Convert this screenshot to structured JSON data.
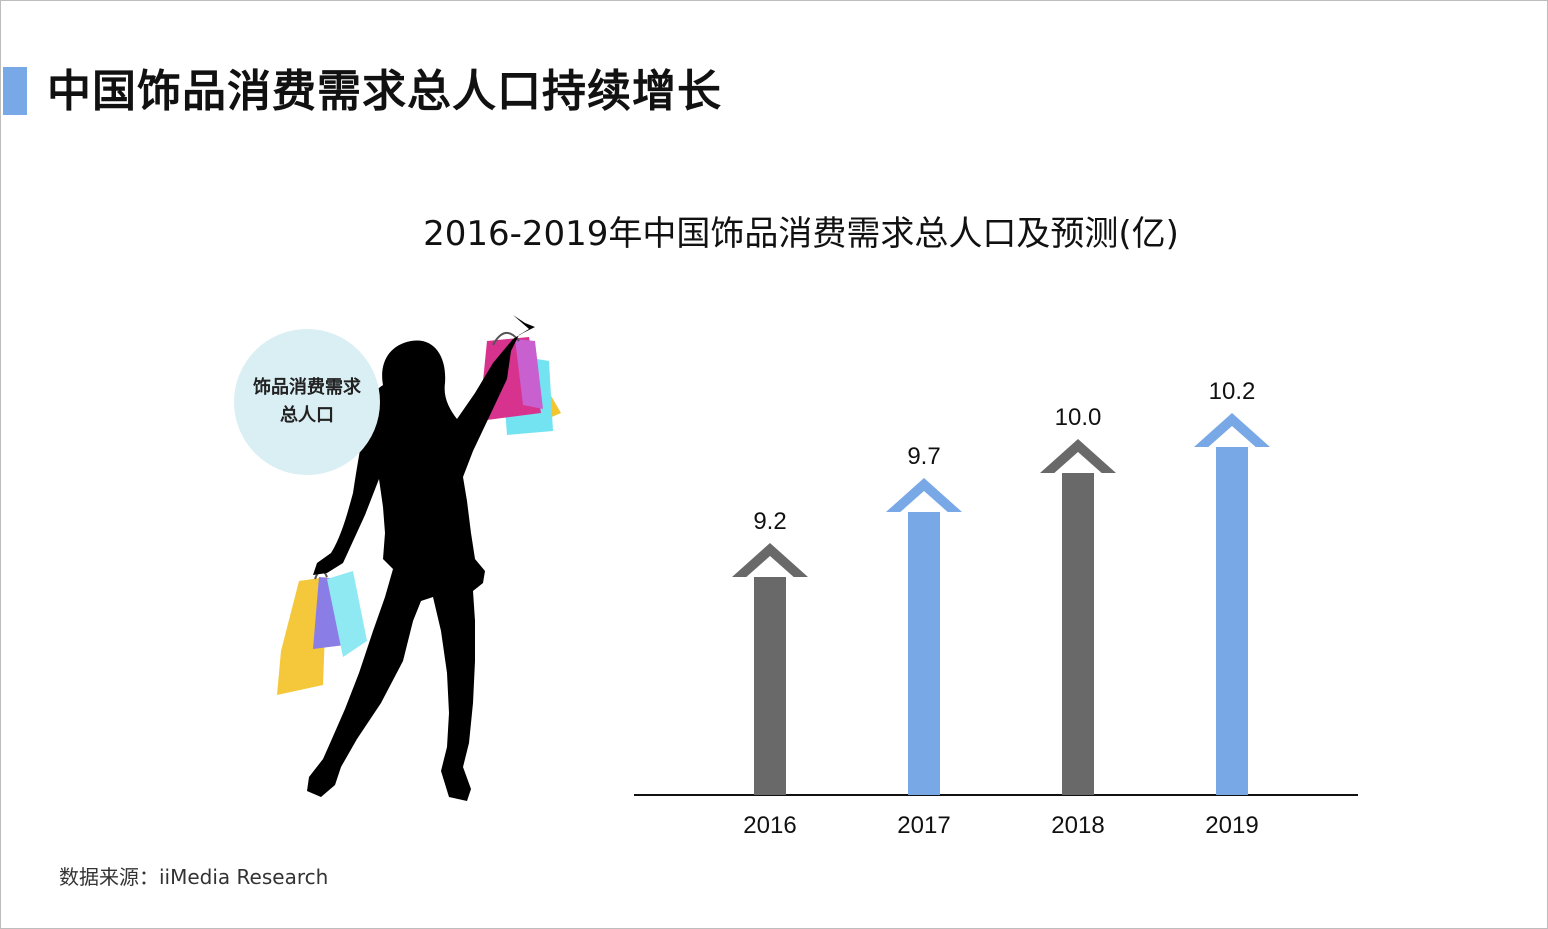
{
  "header": {
    "title": "中国饰品消费需求总人口持续增长"
  },
  "illustration": {
    "bubble_label": "饰品消费需求总人口"
  },
  "footer": {
    "source": "数据来源：iiMedia Research"
  },
  "colors": {
    "accent": "#78a8e6",
    "gray_bar": "#696969",
    "blue_bar": "#78a8e6",
    "bubble": "#d9eff4"
  },
  "chart_data": {
    "type": "bar",
    "title": "2016-2019年中国饰品消费需求总人口及预测(亿)",
    "categories": [
      "2016",
      "2017",
      "2018",
      "2019"
    ],
    "values": [
      9.2,
      9.7,
      10.0,
      10.2
    ],
    "data_labels": [
      "9.2",
      "9.7",
      "10.0",
      "10.2"
    ],
    "bar_colors": [
      "#696969",
      "#78a8e6",
      "#696969",
      "#78a8e6"
    ],
    "xlabel": "",
    "ylabel": "",
    "grid": false,
    "legend": "none",
    "y_axis_visible": false
  }
}
